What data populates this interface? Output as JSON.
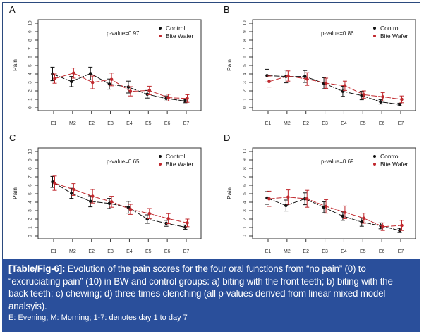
{
  "figure": {
    "caption_tag": "[Table/Fig-6]:",
    "caption_text": " Evolution of the pain scores for the four oral functions from “no pain” (0) to “excruciating pain” (10) in BW and control groups: a) biting with the front teeth; b) biting with the back teeth; c) chewing; d) three times clenching (all p-values derived from linear mixed model analsyis).",
    "caption_note": "E: Evening; M: Morning; 1-7: denotes day 1 to day 7",
    "colors": {
      "control": "#111111",
      "bite_wafer": "#c0282d",
      "caption_bg": "#2a4f9b",
      "frame": "#2b4a7e"
    }
  },
  "chart_data": [
    {
      "type": "line",
      "panel": "A",
      "title": "",
      "xlabel": "",
      "ylabel": "Pain",
      "ylim": [
        0,
        10
      ],
      "yticks": [
        "0",
        "1",
        "2",
        "3",
        "4",
        "5",
        "6",
        "7",
        "8",
        "9",
        "10"
      ],
      "categories": [
        "E1",
        "M2",
        "E2",
        "E3",
        "E4",
        "E5",
        "E6",
        "E7"
      ],
      "annotation": "p-value=0.97",
      "legend": {
        "position": "top-right",
        "entries": [
          "Control",
          "Bite Wafer"
        ]
      },
      "series": [
        {
          "name": "Control",
          "values": [
            4.0,
            3.1,
            4.05,
            2.8,
            2.45,
            1.6,
            1.1,
            0.8
          ],
          "err": [
            0.8,
            0.6,
            0.75,
            0.6,
            0.7,
            0.45,
            0.3,
            0.2
          ]
        },
        {
          "name": "Bite Wafer",
          "values": [
            3.45,
            4.1,
            3.0,
            3.35,
            1.95,
            2.05,
            1.2,
            1.1
          ],
          "err": [
            0.55,
            0.6,
            0.75,
            0.75,
            0.55,
            0.5,
            0.4,
            0.45
          ]
        }
      ]
    },
    {
      "type": "line",
      "panel": "B",
      "title": "",
      "xlabel": "",
      "ylabel": "Pain",
      "ylim": [
        0,
        10
      ],
      "yticks": [
        "0",
        "1",
        "2",
        "3",
        "4",
        "5",
        "6",
        "7",
        "8",
        "9",
        "10"
      ],
      "categories": [
        "E1",
        "M2",
        "E2",
        "E3",
        "E4",
        "E5",
        "E6",
        "E7"
      ],
      "annotation": "p-value=0.86",
      "legend": {
        "position": "top-right",
        "entries": [
          "Control",
          "Bite Wafer"
        ]
      },
      "series": [
        {
          "name": "Control",
          "values": [
            3.8,
            3.7,
            3.7,
            2.9,
            1.95,
            1.45,
            0.7,
            0.4
          ],
          "err": [
            0.75,
            0.75,
            0.7,
            0.65,
            0.6,
            0.5,
            0.25,
            0.15
          ]
        },
        {
          "name": "Bite Wafer",
          "values": [
            3.1,
            3.75,
            3.4,
            2.9,
            2.6,
            1.55,
            1.3,
            1.0
          ],
          "err": [
            0.65,
            0.6,
            0.75,
            0.6,
            0.55,
            0.45,
            0.5,
            0.4
          ]
        }
      ]
    },
    {
      "type": "line",
      "panel": "C",
      "title": "",
      "xlabel": "",
      "ylabel": "Pain",
      "ylim": [
        0,
        10
      ],
      "yticks": [
        "0",
        "1",
        "2",
        "3",
        "4",
        "5",
        "6",
        "7",
        "8",
        "9",
        "10"
      ],
      "categories": [
        "E1",
        "M2",
        "E2",
        "E3",
        "E4",
        "E5",
        "E6",
        "E7"
      ],
      "annotation": "p-value=0.65",
      "legend": {
        "position": "top-right",
        "entries": [
          "Control",
          "Bite Wafer"
        ]
      },
      "series": [
        {
          "name": "Control",
          "values": [
            6.4,
            5.05,
            4.1,
            3.85,
            3.4,
            2.0,
            1.5,
            1.05
          ],
          "err": [
            0.65,
            0.6,
            0.65,
            0.6,
            0.7,
            0.5,
            0.35,
            0.25
          ]
        },
        {
          "name": "Bite Wafer",
          "values": [
            6.25,
            5.5,
            4.7,
            4.05,
            3.15,
            2.65,
            2.05,
            1.55
          ],
          "err": [
            0.85,
            0.7,
            0.8,
            0.65,
            0.6,
            0.6,
            0.6,
            0.45
          ]
        }
      ]
    },
    {
      "type": "line",
      "panel": "D",
      "title": "",
      "xlabel": "",
      "ylabel": "Pain",
      "ylim": [
        0,
        10
      ],
      "yticks": [
        "0",
        "1",
        "2",
        "3",
        "4",
        "5",
        "6",
        "7",
        "8",
        "9",
        "10"
      ],
      "categories": [
        "E1",
        "M2",
        "E2",
        "E3",
        "E4",
        "E5",
        "E6",
        "E7"
      ],
      "annotation": "p-value=0.69",
      "legend": {
        "position": "top-right",
        "entries": [
          "Control",
          "Bite Wafer"
        ]
      },
      "series": [
        {
          "name": "Control",
          "values": [
            4.5,
            3.6,
            4.4,
            3.4,
            2.35,
            1.65,
            1.2,
            0.65
          ],
          "err": [
            0.75,
            0.65,
            0.7,
            0.65,
            0.5,
            0.5,
            0.35,
            0.25
          ]
        },
        {
          "name": "Bite Wafer",
          "values": [
            4.4,
            4.6,
            4.4,
            3.5,
            2.8,
            2.1,
            1.1,
            1.25
          ],
          "err": [
            0.9,
            0.85,
            1.0,
            0.8,
            0.75,
            0.6,
            0.45,
            0.6
          ]
        }
      ]
    }
  ]
}
